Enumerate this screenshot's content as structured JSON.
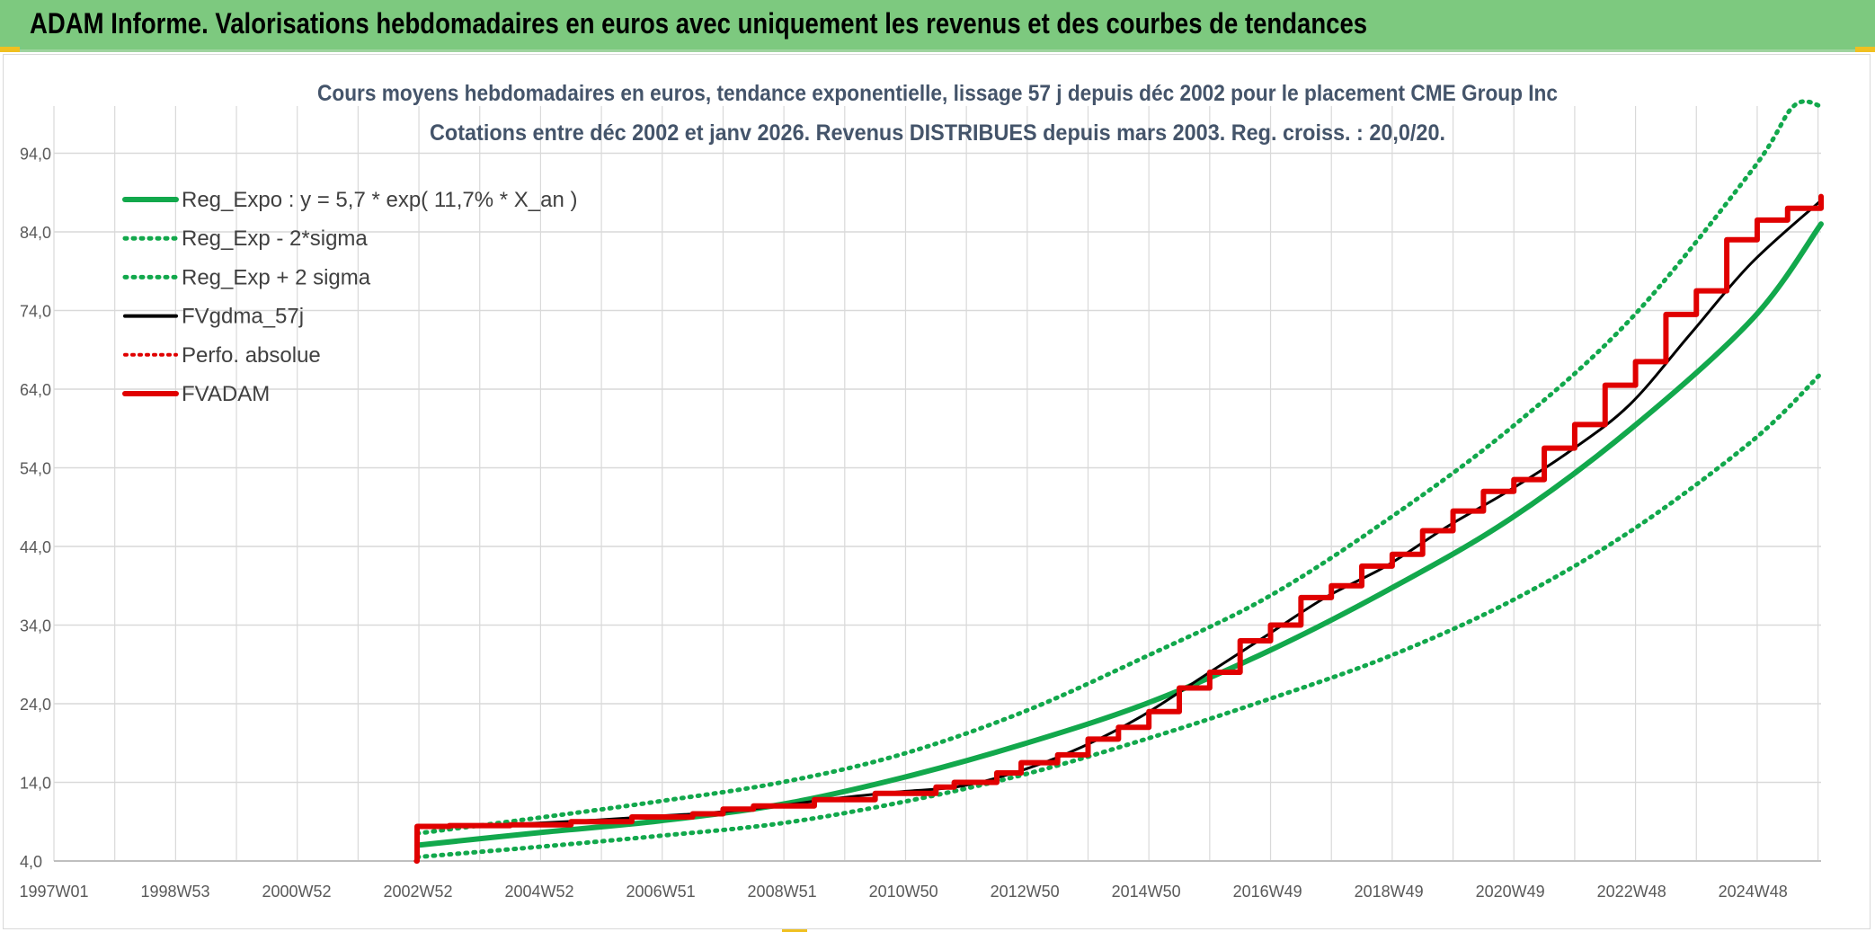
{
  "header": {
    "title": "ADAM Informe. Valorisations hebdomadaires en euros avec uniquement les revenus et des courbes de tendances"
  },
  "colors": {
    "header_bg": "#7dc97f",
    "reg_expo": "#12a84c",
    "sigma": "#12a84c",
    "fvgdma": "#000000",
    "perfo": "#e00000",
    "fvadam": "#e00000"
  },
  "chart_data": {
    "type": "line",
    "title": [
      "Cours moyens hebdomadaires en euros, tendance exponentielle, lissage 57 j depuis déc 2002 pour le placement CME Group Inc",
      "Cotations entre déc 2002 et janv 2026. Revenus DISTRIBUES depuis mars 2003. Reg. croiss. : 20,0/20."
    ],
    "xlabel": "",
    "ylabel": "",
    "x_ticks": [
      "1997W01",
      "1998W53",
      "2000W52",
      "2002W52",
      "2004W52",
      "2006W51",
      "2008W51",
      "2010W50",
      "2012W50",
      "2014W50",
      "2016W49",
      "2018W49",
      "2020W49",
      "2022W48",
      "2024W48"
    ],
    "xlim": [
      1997.0,
      2026.05
    ],
    "y_ticks": [
      "4,0",
      "14,0",
      "24,0",
      "34,0",
      "44,0",
      "54,0",
      "64,0",
      "74,0",
      "84,0",
      "94,0"
    ],
    "ylim": [
      4,
      100
    ],
    "grid": true,
    "legend_position": "top-left",
    "legend": [
      {
        "label": "Reg_Expo : y = 5,7 * exp( 11,7% *  X_an )",
        "style": "solid-thick-green"
      },
      {
        "label": "Reg_Exp - 2*sigma",
        "style": "dotted-green"
      },
      {
        "label": "Reg_Exp + 2 sigma",
        "style": "dotted-green"
      },
      {
        "label": "FVgdma_57j",
        "style": "solid-black"
      },
      {
        "label": "Perfo. absolue",
        "style": "dotted-red"
      },
      {
        "label": "FVADAM",
        "style": "solid-thick-red"
      }
    ],
    "series": [
      {
        "name": "Reg_Expo : y = 5,7 * exp( 11,7% *  X_an )",
        "x": [
          2002.97,
          2004.97,
          2006.96,
          2008.96,
          2010.95,
          2012.95,
          2014.95,
          2016.94,
          2018.94,
          2020.94,
          2022.93,
          2024.93,
          2026.05
        ],
        "y": [
          6.0,
          7.6,
          9.1,
          11.2,
          14.6,
          18.9,
          24.0,
          30.6,
          38.5,
          47.5,
          59.0,
          73.0,
          85.0
        ]
      },
      {
        "name": "Reg_Exp - 2*sigma",
        "x": [
          2002.97,
          2004.97,
          2006.96,
          2008.96,
          2010.95,
          2012.95,
          2014.95,
          2016.94,
          2018.94,
          2020.94,
          2022.93,
          2024.93,
          2026.05
        ],
        "y": [
          4.5,
          5.8,
          7.2,
          8.8,
          11.5,
          15.0,
          19.5,
          24.5,
          30.0,
          37.0,
          46.0,
          57.5,
          66.0
        ]
      },
      {
        "name": "Reg_Exp + 2 sigma",
        "x": [
          2002.97,
          2004.97,
          2006.96,
          2008.96,
          2010.95,
          2012.95,
          2014.95,
          2016.94,
          2018.94,
          2020.94,
          2022.93,
          2024.93,
          2025.6,
          2026.05
        ],
        "y": [
          7.5,
          9.5,
          11.6,
          14.0,
          17.6,
          23.0,
          30.0,
          37.5,
          47.5,
          59.0,
          73.0,
          92.0,
          100.0,
          100.0
        ]
      },
      {
        "name": "FVgdma_57j",
        "x": [
          2002.97,
          2003.9,
          2004.9,
          2005.9,
          2006.9,
          2007.9,
          2008.9,
          2009.9,
          2010.9,
          2011.9,
          2012.9,
          2013.9,
          2014.9,
          2015.9,
          2016.9,
          2017.9,
          2018.9,
          2019.9,
          2020.9,
          2021.9,
          2022.9,
          2023.9,
          2024.9,
          2026.05
        ],
        "y": [
          8.3,
          8.5,
          8.8,
          9.2,
          9.7,
          10.2,
          11.0,
          12.0,
          12.8,
          13.5,
          15.5,
          18.5,
          22.5,
          27.5,
          32.5,
          37.5,
          41.5,
          46.5,
          51.0,
          56.0,
          62.0,
          71.0,
          80.0,
          88.0
        ]
      },
      {
        "name": "FVADAM",
        "x": [
          2002.96,
          2002.97,
          2003.5,
          2004.5,
          2005.5,
          2006.5,
          2007.5,
          2008.0,
          2008.5,
          2009.5,
          2010.5,
          2011.5,
          2011.8,
          2012.5,
          2012.9,
          2013.5,
          2014.0,
          2014.5,
          2015.0,
          2015.5,
          2016.0,
          2016.5,
          2017.0,
          2017.5,
          2018.0,
          2018.5,
          2019.0,
          2019.5,
          2020.0,
          2020.5,
          2021.0,
          2021.5,
          2022.0,
          2022.5,
          2023.0,
          2023.5,
          2024.0,
          2024.5,
          2025.0,
          2025.5,
          2026.05
        ],
        "y": [
          4.0,
          8.4,
          8.5,
          8.6,
          9.0,
          9.6,
          10.0,
          10.6,
          11.0,
          11.8,
          12.6,
          13.4,
          14.0,
          15.2,
          16.5,
          17.5,
          19.5,
          21.0,
          23.0,
          26.0,
          28.0,
          32.0,
          34.0,
          37.5,
          39.0,
          41.5,
          43.0,
          46.0,
          48.5,
          51.0,
          52.5,
          56.5,
          59.5,
          64.5,
          67.5,
          73.5,
          76.5,
          83.0,
          85.5,
          87.0,
          88.5
        ]
      }
    ]
  }
}
